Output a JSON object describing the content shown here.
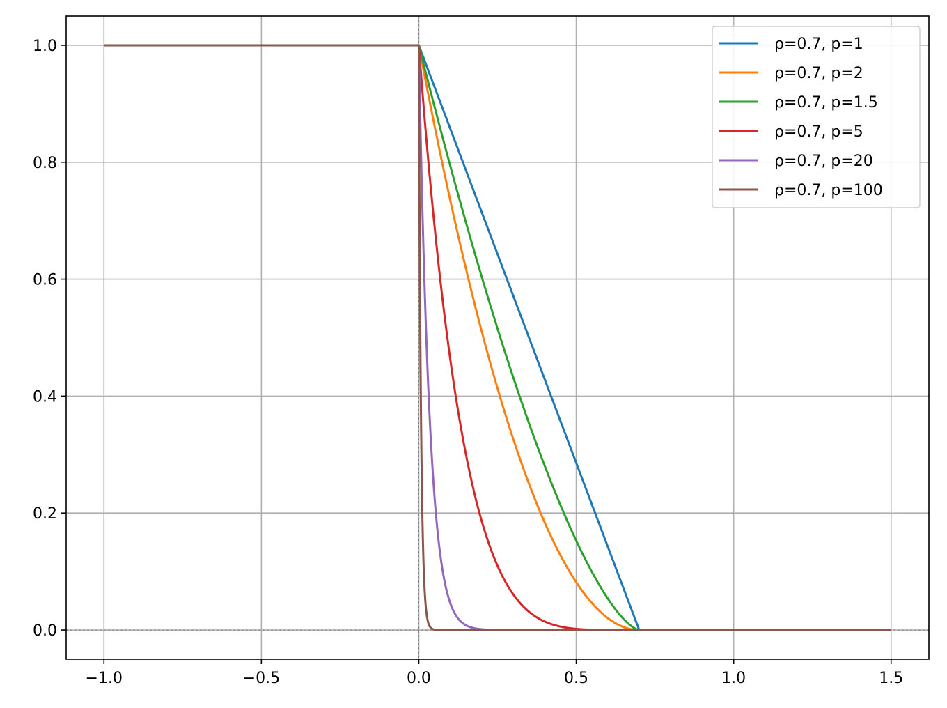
{
  "chart_data": {
    "type": "line",
    "title": "",
    "xlabel": "",
    "ylabel": "",
    "xlim": [
      -1.12,
      1.62
    ],
    "ylim": [
      -0.05,
      1.05
    ],
    "xticks": [
      -1.0,
      -0.5,
      0.0,
      0.5,
      1.0,
      1.5
    ],
    "xtick_labels": [
      "−1.0",
      "−0.5",
      "0.0",
      "0.5",
      "1.0",
      "1.5"
    ],
    "yticks": [
      0.0,
      0.2,
      0.4,
      0.6,
      0.8,
      1.0
    ],
    "ytick_labels": [
      "0.0",
      "0.2",
      "0.4",
      "0.6",
      "0.8",
      "1.0"
    ],
    "grid": true,
    "reference_lines": {
      "x": 0,
      "y": 0,
      "style": "dashed"
    },
    "legend_position": "top-right",
    "rho": 0.7,
    "x_range": [
      -1.0,
      1.5
    ],
    "series": [
      {
        "name": "ρ=0.7, p=1",
        "p": 1,
        "color": "#1f77b4"
      },
      {
        "name": "ρ=0.7, p=2",
        "p": 2,
        "color": "#ff7f0e"
      },
      {
        "name": "ρ=0.7, p=1.5",
        "p": 1.5,
        "color": "#2ca02c"
      },
      {
        "name": "ρ=0.7, p=5",
        "p": 5,
        "color": "#d62728"
      },
      {
        "name": "ρ=0.7, p=20",
        "p": 20,
        "color": "#9467bd"
      },
      {
        "name": "ρ=0.7, p=100",
        "p": 100,
        "color": "#8c564b"
      }
    ]
  }
}
